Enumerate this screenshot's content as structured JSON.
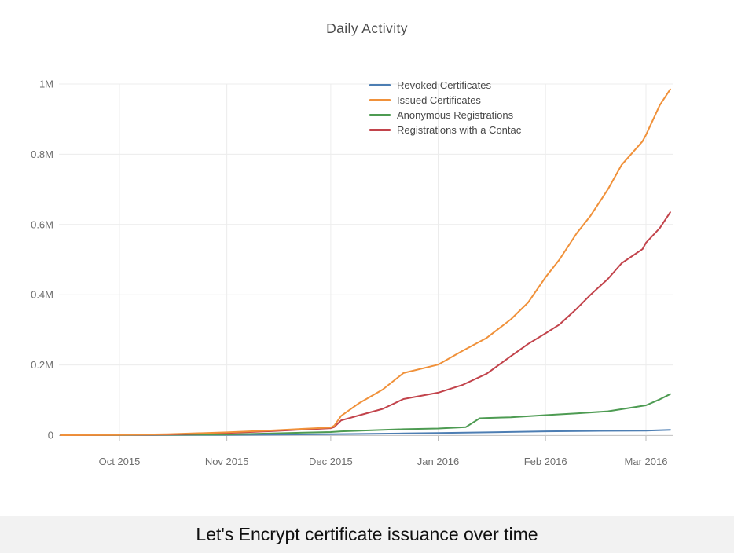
{
  "caption": {
    "text": "Let's Encrypt certificate issuance over time",
    "background": "#f2f2f2"
  },
  "chart_data": {
    "type": "line",
    "title": "Daily Activity",
    "units": "millions",
    "legend_position": "inset-top-right",
    "grid": "on",
    "ylim": [
      0,
      1.04
    ],
    "x_range": [
      "2015-09-14",
      "2016-03-08"
    ],
    "style": {
      "grid_color": "#ececec",
      "axis_line_color": "#c8c8c8",
      "tick_color": "#bbbbbb",
      "tick_label_color": "#6e6e6e",
      "title_color": "#4c4c4c"
    },
    "y_ticks": [
      {
        "value": 0,
        "label": "0"
      },
      {
        "value": 0.2,
        "label": "0.2M"
      },
      {
        "value": 0.4,
        "label": "0.4M"
      },
      {
        "value": 0.6,
        "label": "0.6M"
      },
      {
        "value": 0.8,
        "label": "0.8M"
      },
      {
        "value": 1.0,
        "label": "1M"
      }
    ],
    "x_ticks": [
      {
        "date": "2015-10-01",
        "label": "Oct 2015"
      },
      {
        "date": "2015-11-01",
        "label": "Nov 2015"
      },
      {
        "date": "2015-12-01",
        "label": "Dec 2015"
      },
      {
        "date": "2016-01-01",
        "label": "Jan 2016"
      },
      {
        "date": "2016-02-01",
        "label": "Feb 2016"
      },
      {
        "date": "2016-03-01",
        "label": "Mar 2016"
      }
    ],
    "series": [
      {
        "name": "Revoked Certificates",
        "color": "#4d7eb3",
        "points": [
          [
            "2015-09-14",
            0
          ],
          [
            "2015-10-01",
            0.0002
          ],
          [
            "2015-11-01",
            0.001
          ],
          [
            "2015-12-01",
            0.003
          ],
          [
            "2015-12-22",
            0.005
          ],
          [
            "2016-01-01",
            0.006
          ],
          [
            "2016-01-15",
            0.008
          ],
          [
            "2016-02-01",
            0.011
          ],
          [
            "2016-02-14",
            0.012
          ],
          [
            "2016-03-01",
            0.013
          ],
          [
            "2016-03-08",
            0.015
          ]
        ]
      },
      {
        "name": "Issued Certificates",
        "color": "#f0913a",
        "points": [
          [
            "2015-09-14",
            0
          ],
          [
            "2015-10-01",
            0.001
          ],
          [
            "2015-10-15",
            0.003
          ],
          [
            "2015-11-01",
            0.008
          ],
          [
            "2015-11-15",
            0.014
          ],
          [
            "2015-12-01",
            0.022
          ],
          [
            "2015-12-02",
            0.027
          ],
          [
            "2015-12-04",
            0.055
          ],
          [
            "2015-12-09",
            0.09
          ],
          [
            "2015-12-16",
            0.13
          ],
          [
            "2015-12-22",
            0.177
          ],
          [
            "2016-01-01",
            0.201
          ],
          [
            "2016-01-08",
            0.24
          ],
          [
            "2016-01-15",
            0.277
          ],
          [
            "2016-01-22",
            0.33
          ],
          [
            "2016-01-27",
            0.378
          ],
          [
            "2016-02-01",
            0.45
          ],
          [
            "2016-02-05",
            0.5
          ],
          [
            "2016-02-10",
            0.575
          ],
          [
            "2016-02-14",
            0.625
          ],
          [
            "2016-02-19",
            0.7
          ],
          [
            "2016-02-23",
            0.77
          ],
          [
            "2016-02-29",
            0.837
          ],
          [
            "2016-03-01",
            0.855
          ],
          [
            "2016-03-05",
            0.94
          ],
          [
            "2016-03-08",
            0.985
          ]
        ]
      },
      {
        "name": "Anonymous Registrations",
        "color": "#4d9b52",
        "points": [
          [
            "2015-09-14",
            0
          ],
          [
            "2015-10-01",
            0.0005
          ],
          [
            "2015-11-01",
            0.002
          ],
          [
            "2015-12-01",
            0.009
          ],
          [
            "2015-12-04",
            0.011
          ],
          [
            "2015-12-16",
            0.015
          ],
          [
            "2015-12-22",
            0.017
          ],
          [
            "2016-01-01",
            0.019
          ],
          [
            "2016-01-09",
            0.023
          ],
          [
            "2016-01-13",
            0.048
          ],
          [
            "2016-01-15",
            0.049
          ],
          [
            "2016-01-22",
            0.051
          ],
          [
            "2016-02-01",
            0.057
          ],
          [
            "2016-02-10",
            0.062
          ],
          [
            "2016-02-19",
            0.068
          ],
          [
            "2016-02-23",
            0.074
          ],
          [
            "2016-03-01",
            0.085
          ],
          [
            "2016-03-05",
            0.102
          ],
          [
            "2016-03-08",
            0.117
          ]
        ]
      },
      {
        "name": "Registrations with a Contac",
        "color": "#c2434b",
        "points": [
          [
            "2015-09-14",
            0
          ],
          [
            "2015-10-01",
            0.001
          ],
          [
            "2015-10-15",
            0.002
          ],
          [
            "2015-11-01",
            0.006
          ],
          [
            "2015-11-15",
            0.012
          ],
          [
            "2015-12-01",
            0.02
          ],
          [
            "2015-12-02",
            0.023
          ],
          [
            "2015-12-04",
            0.042
          ],
          [
            "2015-12-09",
            0.056
          ],
          [
            "2015-12-16",
            0.075
          ],
          [
            "2015-12-22",
            0.103
          ],
          [
            "2016-01-01",
            0.121
          ],
          [
            "2016-01-08",
            0.143
          ],
          [
            "2016-01-15",
            0.175
          ],
          [
            "2016-01-22",
            0.225
          ],
          [
            "2016-01-27",
            0.26
          ],
          [
            "2016-02-01",
            0.29
          ],
          [
            "2016-02-05",
            0.315
          ],
          [
            "2016-02-10",
            0.36
          ],
          [
            "2016-02-14",
            0.4
          ],
          [
            "2016-02-19",
            0.445
          ],
          [
            "2016-02-23",
            0.49
          ],
          [
            "2016-02-29",
            0.53
          ],
          [
            "2016-03-01",
            0.548
          ],
          [
            "2016-03-05",
            0.59
          ],
          [
            "2016-03-08",
            0.635
          ]
        ]
      }
    ]
  }
}
